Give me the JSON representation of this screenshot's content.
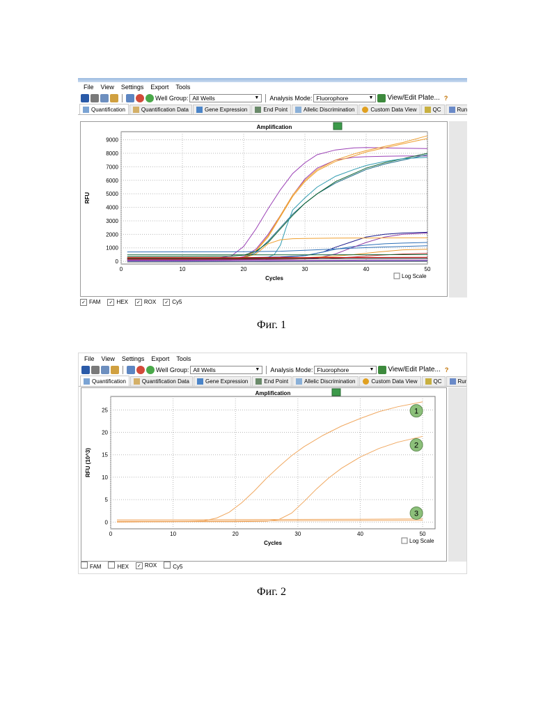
{
  "figures": [
    {
      "menu": [
        "File",
        "View",
        "Settings",
        "Export",
        "Tools"
      ],
      "toolbar": {
        "well_group_label": "Well Group:",
        "well_group_value": "All Wells",
        "analysis_mode_label": "Analysis Mode:",
        "analysis_mode_value": "Fluorophore",
        "view_edit_label": "View/Edit Plate..."
      },
      "tabs": [
        "Quantification",
        "Quantification Data",
        "Gene Expression",
        "End Point",
        "Allelic Discrimination",
        "Custom Data View",
        "QC",
        "Run"
      ],
      "log_scale_label": "Log Scale",
      "fluorophores": [
        {
          "label": "FAM",
          "checked": true
        },
        {
          "label": "HEX",
          "checked": true
        },
        {
          "label": "ROX",
          "checked": true
        },
        {
          "label": "Cy5",
          "checked": true
        }
      ],
      "caption": "Фиг. 1",
      "chart_data": {
        "type": "line",
        "title": "Amplification",
        "xlabel": "Cycles",
        "ylabel": "RFU",
        "xlim": [
          0,
          50
        ],
        "ylim": [
          -200,
          9600
        ],
        "xticks": [
          0,
          10,
          20,
          30,
          40,
          50
        ],
        "yticks": [
          0,
          1000,
          2000,
          3000,
          4000,
          5000,
          6000,
          7000,
          8000,
          9000
        ],
        "grid": true,
        "series": [
          {
            "color": "#9a3fb5",
            "x": [
              1,
              10,
              15,
              18,
              20,
              22,
              24,
              26,
              28,
              30,
              32,
              35,
              38,
              40,
              43,
              46,
              50
            ],
            "y": [
              150,
              160,
              200,
              400,
              1100,
              2400,
              3900,
              5300,
              6500,
              7300,
              7900,
              8250,
              8400,
              8430,
              8400,
              8380,
              8350
            ]
          },
          {
            "color": "#9a3fb5",
            "x": [
              1,
              10,
              18,
              20,
              22,
              24,
              26,
              28,
              30,
              32,
              35,
              38,
              40,
              43,
              46,
              50
            ],
            "y": [
              100,
              110,
              150,
              350,
              900,
              2000,
              3400,
              4900,
              6100,
              6900,
              7500,
              7700,
              7750,
              7780,
              7800,
              7800
            ]
          },
          {
            "color": "#f0a030",
            "x": [
              1,
              10,
              18,
              20,
              22,
              24,
              26,
              28,
              30,
              32,
              35,
              38,
              40,
              43,
              46,
              50
            ],
            "y": [
              80,
              90,
              130,
              300,
              800,
              1900,
              3400,
              4900,
              6000,
              6800,
              7500,
              7950,
              8200,
              8500,
              8800,
              9300
            ]
          },
          {
            "color": "#f0a030",
            "x": [
              1,
              10,
              18,
              20,
              22,
              24,
              26,
              28,
              30,
              32,
              35,
              38,
              40,
              43,
              46,
              50
            ],
            "y": [
              60,
              70,
              120,
              280,
              760,
              1800,
              3300,
              4800,
              5900,
              6700,
              7400,
              7800,
              8100,
              8400,
              8700,
              9100
            ]
          },
          {
            "color": "#1e6b8a",
            "x": [
              1,
              10,
              18,
              20,
              22,
              24,
              26,
              28,
              30,
              32,
              35,
              38,
              40,
              43,
              46,
              50
            ],
            "y": [
              80,
              90,
              130,
              260,
              650,
              1500,
              2500,
              3500,
              4300,
              5000,
              5800,
              6400,
              6800,
              7200,
              7500,
              7900
            ]
          },
          {
            "color": "#0c6130",
            "x": [
              1,
              10,
              18,
              20,
              22,
              24,
              26,
              28,
              30,
              32,
              35,
              38,
              40,
              43,
              46,
              50
            ],
            "y": [
              350,
              360,
              380,
              460,
              740,
              1400,
              2400,
              3400,
              4300,
              5000,
              5900,
              6500,
              6900,
              7300,
              7600,
              8000
            ]
          },
          {
            "color": "#2f9bb0",
            "x": [
              1,
              10,
              20,
              22,
              24,
              25,
              26,
              27,
              28,
              30,
              32,
              35,
              38,
              40,
              43,
              46,
              50
            ],
            "y": [
              200,
              210,
              220,
              230,
              300,
              500,
              1200,
              2600,
              3800,
              4700,
              5500,
              6300,
              6800,
              7100,
              7400,
              7600,
              7700
            ]
          },
          {
            "color": "#1a1a8a",
            "x": [
              1,
              10,
              20,
              26,
              30,
              33,
              35,
              38,
              40,
              43,
              46,
              50
            ],
            "y": [
              250,
              260,
              280,
              320,
              420,
              700,
              1050,
              1500,
              1800,
              2000,
              2100,
              2150
            ]
          },
          {
            "color": "#2d6fb7",
            "x": [
              1,
              10,
              20,
              26,
              30,
              33,
              35,
              38,
              40,
              43,
              46,
              50
            ],
            "y": [
              200,
              205,
              220,
              280,
              420,
              700,
              900,
              1100,
              1200,
              1300,
              1350,
              1400
            ]
          },
          {
            "color": "#8b3aa5",
            "x": [
              1,
              10,
              20,
              28,
              32,
              35,
              37,
              40,
              43,
              46,
              50
            ],
            "y": [
              100,
              100,
              120,
              160,
              250,
              550,
              900,
              1400,
              1800,
              2000,
              2100
            ]
          },
          {
            "color": "#f0a030",
            "x": [
              1,
              10,
              18,
              20,
              22,
              24,
              26,
              28,
              30,
              35,
              40,
              45,
              50
            ],
            "y": [
              180,
              185,
              200,
              250,
              550,
              1300,
              1600,
              1680,
              1700,
              1720,
              1730,
              1740,
              1750
            ]
          },
          {
            "color": "#2d6fb7",
            "x": [
              1,
              10,
              20,
              26,
              30,
              34,
              38,
              42,
              46,
              50
            ],
            "y": [
              700,
              705,
              720,
              750,
              820,
              900,
              980,
              1050,
              1100,
              1150
            ]
          },
          {
            "color": "#c44040",
            "x": [
              1,
              10,
              20,
              30,
              34,
              38,
              42,
              46,
              50
            ],
            "y": [
              150,
              150,
              160,
              180,
              230,
              320,
              450,
              550,
              600
            ]
          },
          {
            "color": "#e8962a",
            "x": [
              1,
              10,
              20,
              30,
              34,
              38,
              42,
              46,
              50
            ],
            "y": [
              250,
              250,
              260,
              280,
              350,
              500,
              700,
              850,
              900
            ]
          },
          {
            "color": "#0c6130",
            "x": [
              1,
              10,
              20,
              30,
              40,
              50
            ],
            "y": [
              480,
              480,
              480,
              485,
              490,
              500
            ]
          },
          {
            "color": "#c80000",
            "x": [
              1,
              10,
              20,
              30,
              40,
              50
            ],
            "y": [
              280,
              280,
              280,
              285,
              290,
              300
            ]
          },
          {
            "color": "#111111",
            "x": [
              1,
              10,
              20,
              30,
              40,
              50
            ],
            "y": [
              200,
              200,
              200,
              205,
              210,
              220
            ]
          },
          {
            "color": "#3a50b0",
            "x": [
              1,
              10,
              20,
              30,
              40,
              50
            ],
            "y": [
              0,
              0,
              0,
              10,
              20,
              30
            ]
          },
          {
            "color": "#7a7a7a",
            "x": [
              1,
              10,
              20,
              30,
              40,
              50
            ],
            "y": [
              -50,
              -50,
              -40,
              -30,
              -20,
              -10
            ]
          },
          {
            "color": "#9a3fb5",
            "x": [
              1,
              10,
              20,
              30,
              40,
              50
            ],
            "y": [
              60,
              60,
              70,
              80,
              90,
              100
            ]
          }
        ]
      }
    },
    {
      "menu": [
        "File",
        "View",
        "Settings",
        "Export",
        "Tools"
      ],
      "toolbar": {
        "well_group_label": "Well Group:",
        "well_group_value": "All Wells",
        "analysis_mode_label": "Analysis Mode:",
        "analysis_mode_value": "Fluorophore",
        "view_edit_label": "View/Edit Plate..."
      },
      "tabs": [
        "Quantification",
        "Quantification Data",
        "Gene Expression",
        "End Point",
        "Allelic Discrimination",
        "Custom Data View",
        "QC",
        "Run"
      ],
      "log_scale_label": "Log Scale",
      "fluorophores": [
        {
          "label": "FAM",
          "checked": false
        },
        {
          "label": "HEX",
          "checked": false
        },
        {
          "label": "ROX",
          "checked": true
        },
        {
          "label": "Cy5",
          "checked": false
        }
      ],
      "caption": "Фиг. 2",
      "chart_data": {
        "type": "line",
        "title": "Amplification",
        "xlabel": "Cycles",
        "ylabel": "RFU (10^3)",
        "xlim": [
          0,
          52
        ],
        "ylim": [
          -1.5,
          28
        ],
        "xticks": [
          0,
          10,
          20,
          30,
          40,
          50
        ],
        "yticks": [
          0,
          5,
          10,
          15,
          20,
          25
        ],
        "grid": true,
        "series": [
          {
            "name": "1",
            "color": "#f0a860",
            "x": [
              1,
              5,
              10,
              15,
              17,
              19,
              21,
              23,
              25,
              27,
              29,
              31,
              34,
              37,
              40,
              43,
              46,
              50
            ],
            "y": [
              0,
              0.05,
              0.1,
              0.3,
              0.9,
              2.2,
              4.3,
              6.9,
              9.8,
              12.4,
              14.8,
              16.8,
              19.3,
              21.4,
              23.1,
              24.6,
              25.7,
              26.8
            ]
          },
          {
            "name": "2",
            "color": "#f0a860",
            "x": [
              1,
              10,
              20,
              25,
              27,
              29,
              31,
              33,
              35,
              37,
              40,
              43,
              46,
              50
            ],
            "y": [
              0,
              0.1,
              0.1,
              0.2,
              0.6,
              2.0,
              4.6,
              7.4,
              9.9,
              12.0,
              14.5,
              16.4,
              17.8,
              19.1
            ]
          },
          {
            "name": "3",
            "color": "#f0a860",
            "x": [
              1,
              10,
              20,
              30,
              40,
              50
            ],
            "y": [
              0.2,
              0.2,
              0.25,
              0.3,
              0.35,
              0.4
            ]
          },
          {
            "color": "#f0a860",
            "x": [
              1,
              10,
              20,
              30,
              40,
              50
            ],
            "y": [
              0.5,
              0.5,
              0.55,
              0.6,
              0.65,
              0.7
            ]
          }
        ],
        "markers": [
          {
            "label": "1",
            "x": 49,
            "y": 24.8
          },
          {
            "label": "2",
            "x": 49,
            "y": 17.2
          },
          {
            "label": "3",
            "x": 49,
            "y": 2.0
          }
        ]
      }
    }
  ]
}
